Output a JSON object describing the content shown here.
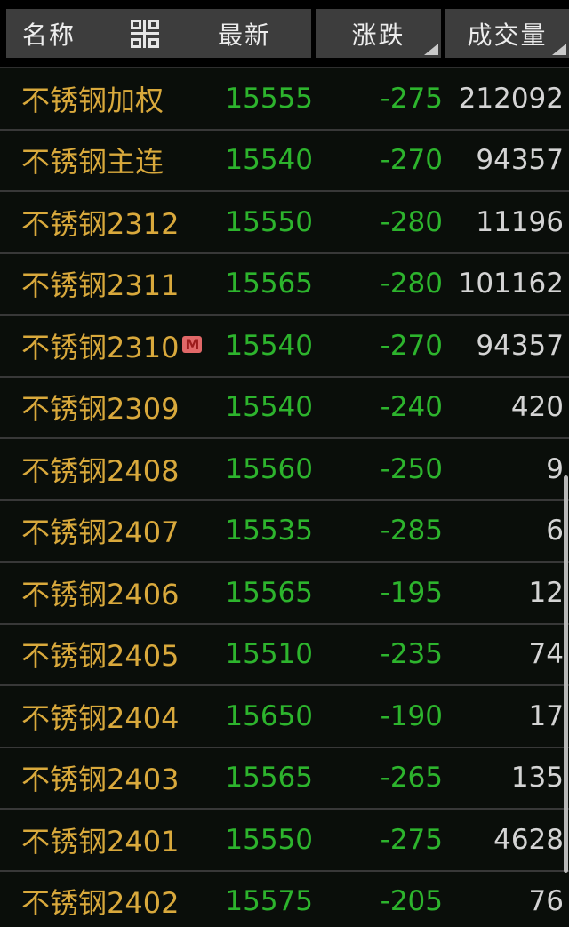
{
  "header": {
    "name_label": "名称",
    "latest_label": "最新",
    "change_label": "涨跌",
    "volume_label": "成交量",
    "grid_icon": "grid-layout-icon",
    "sortable_columns": [
      "涨跌",
      "成交量"
    ]
  },
  "colors": {
    "header_bg": "#3d3d3d",
    "header_text": "#ededed",
    "name_gold": "#d9a93c",
    "value_green": "#2db42d",
    "volume_gray": "#d4d4d4",
    "row_bg": "#0a0e0a",
    "divider": "#383838",
    "badge_bg": "#e16868",
    "badge_text": "#9c1c1c",
    "scrollbar": "#b9b9b9"
  },
  "rows": [
    {
      "name": "不锈钢加权",
      "badge": "",
      "latest": "15555",
      "change": "-275",
      "volume": "212092"
    },
    {
      "name": "不锈钢主连",
      "badge": "",
      "latest": "15540",
      "change": "-270",
      "volume": "94357"
    },
    {
      "name": "不锈钢2312",
      "badge": "",
      "latest": "15550",
      "change": "-280",
      "volume": "11196"
    },
    {
      "name": "不锈钢2311",
      "badge": "",
      "latest": "15565",
      "change": "-280",
      "volume": "101162"
    },
    {
      "name": "不锈钢2310",
      "badge": "M",
      "latest": "15540",
      "change": "-270",
      "volume": "94357"
    },
    {
      "name": "不锈钢2309",
      "badge": "",
      "latest": "15540",
      "change": "-240",
      "volume": "420"
    },
    {
      "name": "不锈钢2408",
      "badge": "",
      "latest": "15560",
      "change": "-250",
      "volume": "9"
    },
    {
      "name": "不锈钢2407",
      "badge": "",
      "latest": "15535",
      "change": "-285",
      "volume": "6"
    },
    {
      "name": "不锈钢2406",
      "badge": "",
      "latest": "15565",
      "change": "-195",
      "volume": "12"
    },
    {
      "name": "不锈钢2405",
      "badge": "",
      "latest": "15510",
      "change": "-235",
      "volume": "74"
    },
    {
      "name": "不锈钢2404",
      "badge": "",
      "latest": "15650",
      "change": "-190",
      "volume": "17"
    },
    {
      "name": "不锈钢2403",
      "badge": "",
      "latest": "15565",
      "change": "-265",
      "volume": "135"
    },
    {
      "name": "不锈钢2401",
      "badge": "",
      "latest": "15550",
      "change": "-275",
      "volume": "4628"
    },
    {
      "name": "不锈钢2402",
      "badge": "",
      "latest": "15575",
      "change": "-205",
      "volume": "76"
    }
  ]
}
